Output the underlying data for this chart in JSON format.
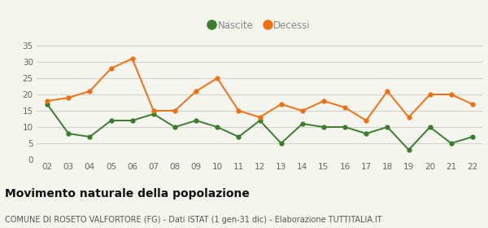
{
  "years": [
    "02",
    "03",
    "04",
    "05",
    "06",
    "07",
    "08",
    "09",
    "10",
    "11",
    "12",
    "13",
    "14",
    "15",
    "16",
    "17",
    "18",
    "19",
    "20",
    "21",
    "22"
  ],
  "nascite": [
    17,
    8,
    7,
    12,
    12,
    14,
    10,
    12,
    10,
    7,
    12,
    5,
    11,
    10,
    10,
    8,
    10,
    3,
    10,
    5,
    7
  ],
  "decessi": [
    18,
    19,
    21,
    28,
    31,
    15,
    15,
    21,
    25,
    15,
    13,
    17,
    15,
    18,
    16,
    12,
    21,
    13,
    20,
    20,
    17
  ],
  "nascite_color": "#3a7d2c",
  "decessi_color": "#f07010",
  "background_color": "#f5f5f0",
  "grid_color": "#d0d0d0",
  "ylim": [
    0,
    35
  ],
  "yticks": [
    0,
    5,
    10,
    15,
    20,
    25,
    30,
    35
  ],
  "title": "Movimento naturale della popolazione",
  "subtitle": "COMUNE DI ROSETO VALFORTORE (FG) - Dati ISTAT (1 gen-31 dic) - Elaborazione TUTTITALIA.IT",
  "legend_nascite": "Nascite",
  "legend_decessi": "Decessi",
  "title_fontsize": 10,
  "subtitle_fontsize": 7,
  "tick_fontsize": 7.5,
  "legend_fontsize": 8.5,
  "marker_size": 4.5,
  "line_width": 1.4,
  "legend_text_color": "#888888",
  "tick_color": "#666666",
  "title_color": "#111111",
  "subtitle_color": "#555555"
}
